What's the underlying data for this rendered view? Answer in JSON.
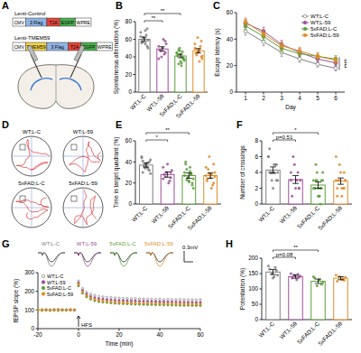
{
  "chart_data": [
    {
      "panel": "B",
      "type": "bar",
      "y_label": "Spontaneous alternation (%)",
      "categories": [
        "WT;L-C",
        "WT;L-59",
        "5xFAD;L-C",
        "5xFAD;L-59"
      ],
      "values": [
        60,
        49,
        41,
        47
      ],
      "errors": [
        2.5,
        2.5,
        2,
        2.5
      ],
      "points": [
        [
          68,
          72,
          55,
          62,
          58,
          50,
          65,
          60,
          57,
          63,
          52,
          70,
          61,
          56,
          59
        ],
        [
          52,
          45,
          60,
          40,
          48,
          55,
          43,
          50,
          47,
          38,
          58
        ],
        [
          45,
          38,
          30,
          50,
          42,
          36,
          40,
          35,
          48,
          44,
          39,
          33,
          47,
          41,
          37,
          46,
          43,
          32
        ],
        [
          55,
          40,
          48,
          62,
          44,
          38,
          52,
          46,
          42,
          50,
          58,
          35,
          45,
          49,
          41
        ]
      ],
      "colors": [
        "#7f7f7f",
        "#9b4f96",
        "#5b9e3a",
        "#e08c2a"
      ],
      "ylim": [
        0,
        80
      ],
      "yticks": [
        0,
        20,
        40,
        60,
        80
      ],
      "annotations": [
        {
          "from": 0,
          "to": 1,
          "text": "**"
        },
        {
          "from": 0,
          "to": 2,
          "text": "**"
        }
      ]
    },
    {
      "panel": "C",
      "type": "line",
      "x_label": "Day",
      "y_label": "Escape latency (s)",
      "x": [
        1,
        2,
        3,
        4,
        5,
        6
      ],
      "xlim": [
        0.5,
        6.5
      ],
      "xticks": [
        1,
        2,
        3,
        4,
        5,
        6
      ],
      "ylim": [
        0,
        60
      ],
      "yticks": [
        0,
        20,
        40,
        60
      ],
      "legend": "upper right",
      "series": [
        {
          "name": "WT;L-C",
          "color": "#7f7f7f",
          "marker": "open",
          "line_style": "solid",
          "values": [
            46,
            38,
            30,
            25,
            21,
            18
          ],
          "errors": [
            3,
            3,
            3,
            2.5,
            2,
            2
          ]
        },
        {
          "name": "WT;L-59",
          "color": "#9b4f96",
          "marker": "circle",
          "line_style": "solid",
          "values": [
            52,
            46,
            36,
            30,
            25,
            22
          ],
          "errors": [
            3,
            3,
            3,
            3,
            2.5,
            2.5
          ]
        },
        {
          "name": "5xFAD;L-C",
          "color": "#5b9e3a",
          "marker": "circle",
          "line_style": "solid",
          "values": [
            50,
            42,
            33,
            29,
            27,
            25
          ],
          "errors": [
            3,
            3,
            3,
            2.5,
            2.5,
            2.5
          ]
        },
        {
          "name": "5xFAD;L-59",
          "color": "#e08c2a",
          "marker": "circle",
          "line_style": "solid",
          "values": [
            53,
            44,
            35,
            31,
            27,
            24
          ],
          "errors": [
            3,
            3,
            3,
            3,
            2.5,
            2.5
          ]
        }
      ],
      "annotations": [
        {
          "x": 6,
          "text": "****"
        }
      ]
    },
    {
      "panel": "E",
      "type": "bar",
      "y_label": "Time in target quadrant (%)",
      "categories": [
        "WT;L-C",
        "WT;L-59",
        "5xFAD;L-C",
        "5xFAD;L-59"
      ],
      "values": [
        37,
        28,
        27,
        27
      ],
      "errors": [
        2,
        2.5,
        2.5,
        2.5
      ],
      "points": [
        [
          45,
          40,
          35,
          38,
          30,
          42,
          33,
          37,
          36,
          44,
          32,
          39,
          34,
          41,
          29
        ],
        [
          35,
          25,
          20,
          30,
          28,
          32,
          22,
          38,
          26,
          24,
          30
        ],
        [
          30,
          20,
          35,
          25,
          40,
          15,
          28,
          22,
          33,
          27,
          18,
          31,
          26,
          38,
          24,
          29,
          21,
          23
        ],
        [
          35,
          20,
          28,
          45,
          22,
          30,
          18,
          25,
          33,
          27,
          38,
          15,
          29,
          24,
          26
        ]
      ],
      "colors": [
        "#7f7f7f",
        "#9b4f96",
        "#5b9e3a",
        "#e08c2a"
      ],
      "ylim": [
        0,
        60
      ],
      "yticks": [
        0,
        20,
        40,
        60
      ],
      "annotations": [
        {
          "from": 0,
          "to": 1,
          "text": "*"
        },
        {
          "from": 0,
          "to": 2,
          "text": "**"
        }
      ]
    },
    {
      "panel": "F",
      "type": "bar",
      "y_label": "Number of crossings",
      "categories": [
        "WT;L-C",
        "WT;L-59",
        "5xFAD;L-C",
        "5xFAD;L-59"
      ],
      "values": [
        4.3,
        3.1,
        2.4,
        2.9
      ],
      "errors": [
        0.4,
        0.5,
        0.4,
        0.4
      ],
      "points": [
        [
          6,
          5,
          4,
          3,
          7,
          4,
          5,
          2,
          4,
          6,
          3,
          5,
          4,
          4,
          3
        ],
        [
          4,
          2,
          3,
          5,
          1,
          3,
          4,
          2,
          6,
          3,
          2
        ],
        [
          2,
          3,
          1,
          4,
          2,
          3,
          0,
          2,
          5,
          3,
          2,
          1,
          3,
          2,
          4,
          2,
          1,
          3
        ],
        [
          3,
          4,
          2,
          5,
          1,
          3,
          2,
          4,
          3,
          6,
          2,
          1,
          3,
          2,
          3
        ]
      ],
      "colors": [
        "#7f7f7f",
        "#9b4f96",
        "#5b9e3a",
        "#e08c2a"
      ],
      "ylim": [
        0,
        8
      ],
      "yticks": [
        0,
        2,
        4,
        6,
        8
      ],
      "annotations": [
        {
          "from": 0,
          "to": 1,
          "text": "p=0.51"
        },
        {
          "from": 0,
          "to": 2,
          "text": "*"
        }
      ]
    },
    {
      "panel": "G",
      "type": "line",
      "x_label": "Time (min)",
      "y_label": "fEPSP slope (%)",
      "scale_bar": "0.3mV",
      "x": [
        -20,
        -18,
        -16,
        -14,
        -12,
        -10,
        -8,
        -6,
        -4,
        -2,
        0,
        2,
        4,
        6,
        8,
        10,
        12,
        14,
        16,
        18,
        20,
        22,
        24,
        26,
        28,
        30,
        32,
        34,
        36,
        38,
        40,
        42,
        44,
        46,
        48,
        50,
        52,
        54,
        56,
        58,
        60
      ],
      "xlim": [
        -20,
        60
      ],
      "xticks": [
        -20,
        0,
        20,
        40,
        60
      ],
      "ylim": [
        0,
        300
      ],
      "yticks": [
        0,
        100,
        200,
        300
      ],
      "legend": "upper left",
      "line_style": "none",
      "series": [
        {
          "name": "WT;L-C",
          "color": "#7f7f7f",
          "marker": "open",
          "values": [
            100,
            101,
            99,
            100,
            98,
            101,
            100,
            99,
            102,
            100,
            255,
            215,
            195,
            185,
            178,
            172,
            170,
            168,
            166,
            165,
            163,
            162,
            162,
            160,
            161,
            160,
            159,
            158,
            158,
            157,
            158,
            156,
            157,
            156,
            155,
            156,
            155,
            154,
            155,
            154,
            155
          ]
        },
        {
          "name": "WT;L-59",
          "color": "#9b4f96",
          "marker": "circle",
          "values": [
            99,
            100,
            101,
            98,
            100,
            102,
            99,
            100,
            101,
            100,
            245,
            205,
            185,
            172,
            165,
            160,
            157,
            155,
            153,
            152,
            150,
            150,
            149,
            148,
            148,
            147,
            146,
            146,
            145,
            145,
            144,
            144,
            143,
            143,
            142,
            142,
            141,
            141,
            141,
            140,
            140
          ]
        },
        {
          "name": "5xFAD;L-C",
          "color": "#5b9e3a",
          "marker": "circle",
          "values": [
            101,
            99,
            100,
            100,
            102,
            98,
            100,
            101,
            99,
            100,
            230,
            190,
            170,
            158,
            150,
            145,
            142,
            140,
            138,
            136,
            135,
            134,
            133,
            132,
            131,
            131,
            130,
            129,
            129,
            128,
            128,
            127,
            127,
            126,
            126,
            125,
            125,
            125,
            124,
            124,
            124
          ]
        },
        {
          "name": "5xFAD;L-59",
          "color": "#e08c2a",
          "marker": "circle",
          "values": [
            100,
            98,
            101,
            99,
            100,
            100,
            102,
            99,
            100,
            101,
            240,
            198,
            178,
            165,
            157,
            151,
            148,
            146,
            144,
            142,
            141,
            140,
            139,
            138,
            137,
            137,
            136,
            136,
            135,
            135,
            134,
            134,
            133,
            133,
            133,
            132,
            132,
            131,
            131,
            131,
            131
          ]
        }
      ],
      "annotations": [
        {
          "x": 0,
          "text": "HFS"
        }
      ]
    },
    {
      "panel": "H",
      "type": "bar",
      "y_label": "Potentiation (%)",
      "categories": [
        "WT;L-C",
        "WT;L-59",
        "5xFAD;L-C",
        "5xFAD;L-59"
      ],
      "values": [
        155,
        140,
        125,
        135
      ],
      "errors": [
        8,
        5,
        7,
        5
      ],
      "points": [
        [
          175,
          160,
          140,
          150,
          165,
          145,
          170,
          135
        ],
        [
          150,
          138,
          130,
          145,
          135,
          142,
          148
        ],
        [
          140,
          115,
          130,
          110,
          135,
          120
        ],
        [
          145,
          128,
          130,
          140,
          125,
          138,
          132
        ]
      ],
      "colors": [
        "#7f7f7f",
        "#9b4f96",
        "#5b9e3a",
        "#e08c2a"
      ],
      "ylim": [
        0,
        200
      ],
      "yticks": [
        0,
        50,
        100,
        150,
        200
      ],
      "annotations": [
        {
          "from": 0,
          "to": 1,
          "text": "p=0.08"
        },
        {
          "from": 0,
          "to": 2,
          "text": "**"
        }
      ]
    }
  ],
  "diagrams": [
    {
      "panel": "A",
      "constructs": [
        {
          "name": "Lenti-Control",
          "elements": [
            "CMV",
            "3 Flag",
            "T2A",
            "EGFP",
            "WPRE"
          ],
          "colors": [
            "#ffffff",
            "#8fb4e3",
            "#e0463c",
            "#4caf50",
            "#ffffff"
          ]
        },
        {
          "name": "Lenti-TMEM59",
          "elements": [
            "CMV",
            "TMEM59",
            "3 Flag",
            "T2A",
            "EGFP",
            "WPRE"
          ],
          "colors": [
            "#ffffff",
            "#f3d54e",
            "#8fb4e3",
            "#e0463c",
            "#4caf50",
            "#ffffff"
          ]
        }
      ]
    },
    {
      "panel": "D",
      "labels": [
        "WT;L-C",
        "WT;L-59",
        "5xFAD;L-C",
        "5xFAD;L-59"
      ]
    }
  ]
}
